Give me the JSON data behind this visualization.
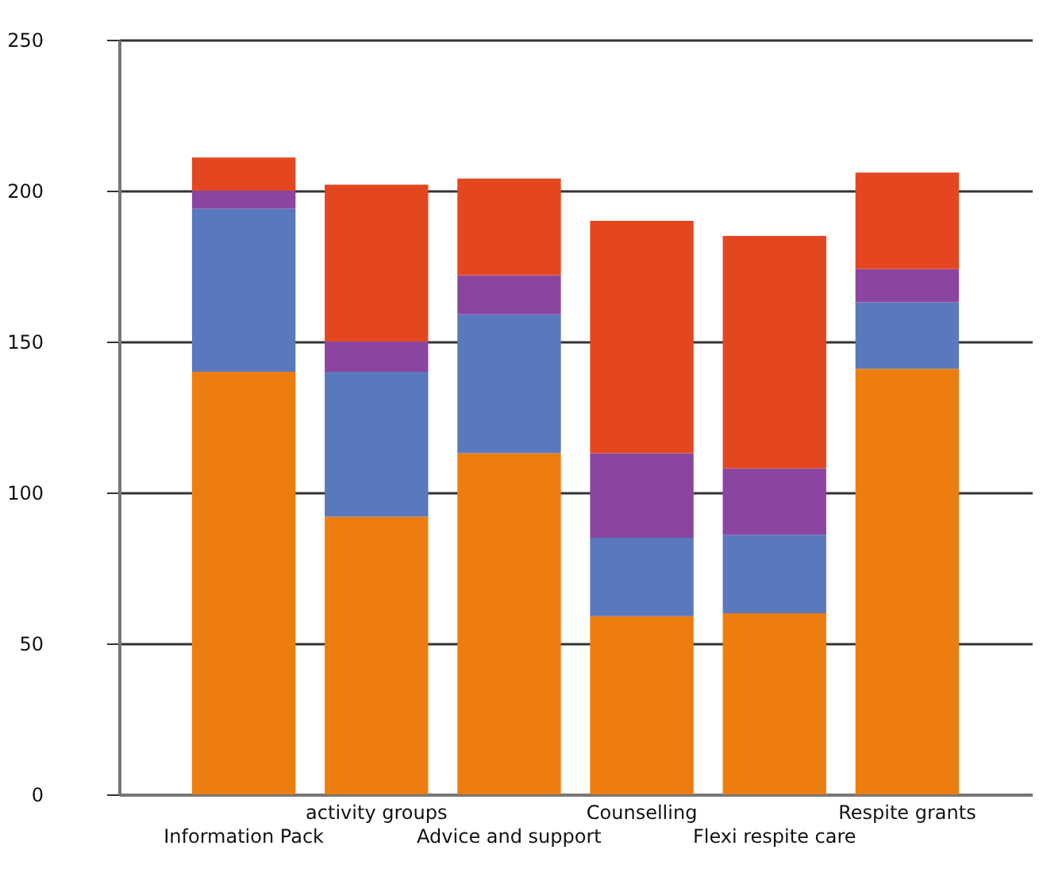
{
  "chart_data": {
    "type": "bar",
    "stacked": true,
    "categories": [
      "Information Pack",
      "activity groups",
      "Advice and support",
      "Counselling",
      "Flexi respite care",
      "Respite grants"
    ],
    "series": [
      {
        "color": "#ee7d10",
        "values": [
          140,
          92,
          113,
          59,
          60,
          141
        ]
      },
      {
        "color": "#5a78bd",
        "values": [
          54,
          48,
          46,
          26,
          26,
          22
        ]
      },
      {
        "color": "#8b45a0",
        "values": [
          6,
          10,
          13,
          28,
          22,
          11
        ]
      },
      {
        "color": "#e4471f",
        "values": [
          11,
          52,
          32,
          77,
          77,
          32
        ]
      }
    ],
    "ylim": [
      0,
      250
    ],
    "yticks": [
      0,
      50,
      100,
      150,
      200,
      250
    ],
    "grid": "y",
    "legend": false
  }
}
